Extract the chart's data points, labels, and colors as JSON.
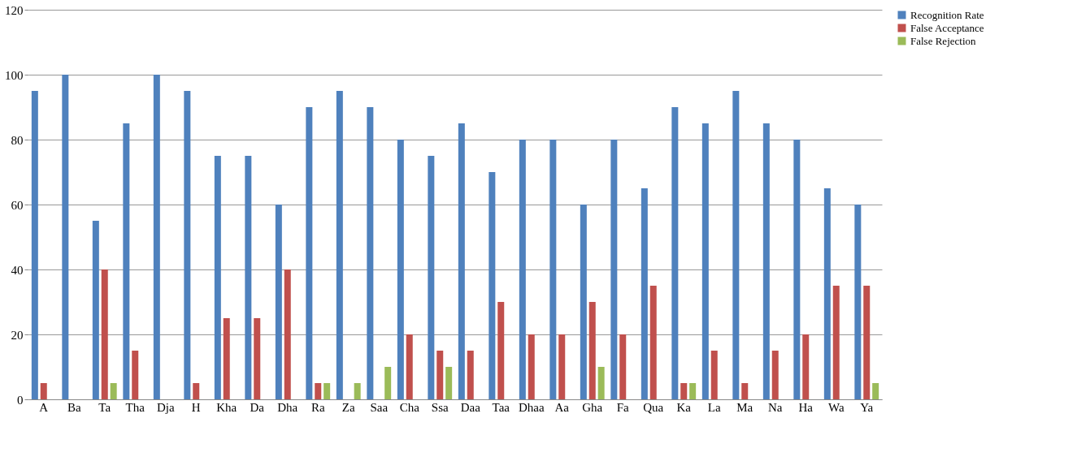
{
  "chart_data": {
    "type": "bar",
    "categories": [
      "A",
      "Ba",
      "Ta",
      "Tha",
      "Dja",
      "H",
      "Kha",
      "Da",
      "Dha",
      "Ra",
      "Za",
      "Saa",
      "Cha",
      "Ssa",
      "Daa",
      "Taa",
      "Dhaa",
      "Aa",
      "Gha",
      "Fa",
      "Qua",
      "Ka",
      "La",
      "Ma",
      "Na",
      "Ha",
      "Wa",
      "Ya"
    ],
    "series": [
      {
        "name": "Recognition Rate",
        "color": "#4f81bd",
        "values": [
          95,
          100,
          55,
          85,
          100,
          95,
          75,
          75,
          60,
          90,
          95,
          90,
          80,
          75,
          85,
          70,
          80,
          80,
          60,
          80,
          65,
          90,
          85,
          95,
          85,
          80,
          65,
          60
        ]
      },
      {
        "name": "False Acceptance",
        "color": "#c0504d",
        "values": [
          5,
          0,
          40,
          15,
          0,
          5,
          25,
          25,
          40,
          5,
          0,
          0,
          20,
          15,
          15,
          30,
          20,
          20,
          30,
          20,
          35,
          5,
          15,
          5,
          15,
          20,
          35,
          35
        ]
      },
      {
        "name": "False Rejection",
        "color": "#9bbb59",
        "values": [
          0,
          0,
          5,
          0,
          0,
          0,
          0,
          0,
          0,
          5,
          5,
          10,
          0,
          10,
          0,
          0,
          0,
          0,
          10,
          0,
          0,
          5,
          0,
          0,
          0,
          0,
          0,
          5
        ]
      }
    ],
    "ylim": [
      0,
      120
    ],
    "yticks": [
      0,
      20,
      40,
      60,
      80,
      100,
      120
    ],
    "grid": "y",
    "legend": "top right"
  }
}
